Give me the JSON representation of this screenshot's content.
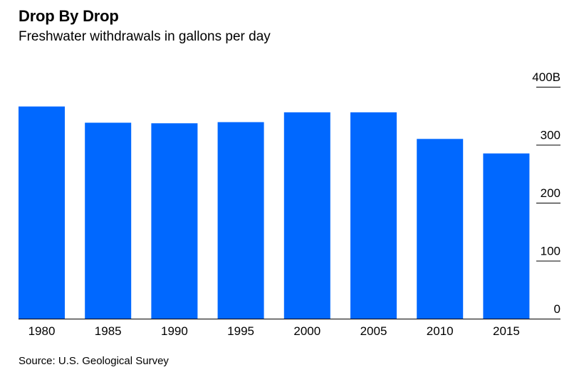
{
  "header": {
    "title": "Drop By Drop",
    "subtitle": "Freshwater withdrawals in gallons per day"
  },
  "footer": {
    "source": "Source: U.S. Geological Survey"
  },
  "colors": {
    "bar": "#0068ff",
    "axis": "#000000",
    "background": "#ffffff"
  },
  "chart_data": {
    "type": "bar",
    "title": "Drop By Drop",
    "subtitle": "Freshwater withdrawals in gallons per day",
    "xlabel": "",
    "ylabel": "",
    "categories": [
      "1980",
      "1985",
      "1990",
      "1995",
      "2000",
      "2005",
      "2010",
      "2015"
    ],
    "values": [
      366,
      338,
      337,
      339,
      356,
      356,
      310,
      285
    ],
    "unit": "B",
    "ylim": [
      0,
      400
    ],
    "y_ticks": [
      0,
      100,
      200,
      300,
      400
    ],
    "y_tick_labels": [
      "0",
      "100",
      "200",
      "300",
      "400B"
    ],
    "y_axis_position": "right",
    "grid": false,
    "legend": "none"
  }
}
